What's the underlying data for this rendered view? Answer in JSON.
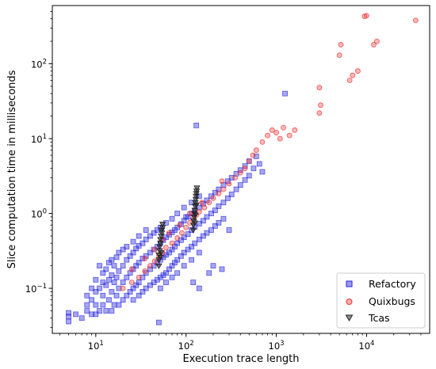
{
  "chart_data": {
    "type": "scatter",
    "xlabel": "Execution trace length",
    "ylabel": "Slice computation time in milliseconds",
    "xscale": "log",
    "yscale": "log",
    "xlim": [
      3.3,
      50000
    ],
    "ylim": [
      0.025,
      600
    ],
    "x_ticks": [
      {
        "value": 10,
        "base": "10",
        "exp": "1"
      },
      {
        "value": 100,
        "base": "10",
        "exp": "2"
      },
      {
        "value": 1000,
        "base": "10",
        "exp": "3"
      },
      {
        "value": 10000,
        "base": "10",
        "exp": "4"
      }
    ],
    "y_ticks": [
      {
        "value": 0.1,
        "base": "10",
        "exp": "−1"
      },
      {
        "value": 1,
        "base": "10",
        "exp": "0"
      },
      {
        "value": 10,
        "base": "10",
        "exp": "1"
      },
      {
        "value": 100,
        "base": "10",
        "exp": "2"
      }
    ],
    "grid": false,
    "legend_position": "bottom-right",
    "series": [
      {
        "name": "Refactory",
        "marker": "square",
        "color": "#2222dd",
        "points": [
          [
            5,
            0.036
          ],
          [
            5,
            0.042
          ],
          [
            5,
            0.047
          ],
          [
            6,
            0.045
          ],
          [
            7,
            0.04
          ],
          [
            8,
            0.05
          ],
          [
            8,
            0.06
          ],
          [
            8,
            0.08
          ],
          [
            9,
            0.045
          ],
          [
            9,
            0.07
          ],
          [
            9,
            0.1
          ],
          [
            10,
            0.045
          ],
          [
            10,
            0.06
          ],
          [
            10,
            0.09
          ],
          [
            10,
            0.13
          ],
          [
            11,
            0.05
          ],
          [
            11,
            0.1
          ],
          [
            11,
            0.2
          ],
          [
            12,
            0.06
          ],
          [
            12,
            0.08
          ],
          [
            12,
            0.12
          ],
          [
            12,
            0.16
          ],
          [
            13,
            0.05
          ],
          [
            13,
            0.11
          ],
          [
            13,
            0.18
          ],
          [
            14,
            0.07
          ],
          [
            14,
            0.13
          ],
          [
            14,
            0.22
          ],
          [
            15,
            0.05
          ],
          [
            15,
            0.09
          ],
          [
            15,
            0.15
          ],
          [
            15,
            0.24
          ],
          [
            16,
            0.06
          ],
          [
            16,
            0.12
          ],
          [
            16,
            0.2
          ],
          [
            17,
            0.08
          ],
          [
            17,
            0.14
          ],
          [
            17,
            0.26
          ],
          [
            18,
            0.06
          ],
          [
            18,
            0.1
          ],
          [
            18,
            0.17
          ],
          [
            18,
            0.3
          ],
          [
            20,
            0.07
          ],
          [
            20,
            0.12
          ],
          [
            20,
            0.2
          ],
          [
            20,
            0.33
          ],
          [
            22,
            0.08
          ],
          [
            22,
            0.14
          ],
          [
            22,
            0.24
          ],
          [
            22,
            0.36
          ],
          [
            24,
            0.09
          ],
          [
            24,
            0.16
          ],
          [
            24,
            0.27
          ],
          [
            26,
            0.07
          ],
          [
            26,
            0.1
          ],
          [
            26,
            0.18
          ],
          [
            26,
            0.3
          ],
          [
            26,
            0.42
          ],
          [
            28,
            0.11
          ],
          [
            28,
            0.2
          ],
          [
            28,
            0.34
          ],
          [
            30,
            0.08
          ],
          [
            30,
            0.12
          ],
          [
            30,
            0.22
          ],
          [
            30,
            0.37
          ],
          [
            30,
            0.5
          ],
          [
            33,
            0.09
          ],
          [
            33,
            0.14
          ],
          [
            33,
            0.25
          ],
          [
            33,
            0.4
          ],
          [
            36,
            0.1
          ],
          [
            36,
            0.16
          ],
          [
            36,
            0.27
          ],
          [
            36,
            0.45
          ],
          [
            36,
            0.6
          ],
          [
            40,
            0.11
          ],
          [
            40,
            0.18
          ],
          [
            40,
            0.3
          ],
          [
            40,
            0.5
          ],
          [
            44,
            0.12
          ],
          [
            44,
            0.2
          ],
          [
            44,
            0.33
          ],
          [
            44,
            0.55
          ],
          [
            48,
            0.13
          ],
          [
            48,
            0.22
          ],
          [
            48,
            0.36
          ],
          [
            48,
            0.6
          ],
          [
            52,
            0.1
          ],
          [
            52,
            0.14
          ],
          [
            52,
            0.24
          ],
          [
            52,
            0.4
          ],
          [
            52,
            0.65
          ],
          [
            56,
            0.15
          ],
          [
            56,
            0.26
          ],
          [
            56,
            0.44
          ],
          [
            60,
            0.12
          ],
          [
            60,
            0.16
          ],
          [
            60,
            0.28
          ],
          [
            60,
            0.48
          ],
          [
            60,
            0.75
          ],
          [
            65,
            0.18
          ],
          [
            65,
            0.3
          ],
          [
            65,
            0.52
          ],
          [
            70,
            0.14
          ],
          [
            70,
            0.2
          ],
          [
            70,
            0.33
          ],
          [
            70,
            0.56
          ],
          [
            70,
            0.85
          ],
          [
            75,
            0.22
          ],
          [
            75,
            0.36
          ],
          [
            75,
            0.6
          ],
          [
            80,
            0.16
          ],
          [
            80,
            0.24
          ],
          [
            80,
            0.4
          ],
          [
            80,
            0.65
          ],
          [
            80,
            1.0
          ],
          [
            88,
            0.27
          ],
          [
            88,
            0.44
          ],
          [
            88,
            0.72
          ],
          [
            95,
            0.2
          ],
          [
            95,
            0.3
          ],
          [
            95,
            0.48
          ],
          [
            95,
            0.8
          ],
          [
            95,
            1.2
          ],
          [
            105,
            0.33
          ],
          [
            105,
            0.53
          ],
          [
            105,
            0.9
          ],
          [
            115,
            0.24
          ],
          [
            115,
            0.36
          ],
          [
            115,
            0.6
          ],
          [
            115,
            1.0
          ],
          [
            115,
            1.4
          ],
          [
            125,
            0.4
          ],
          [
            125,
            0.66
          ],
          [
            125,
            1.1
          ],
          [
            140,
            0.3
          ],
          [
            140,
            0.45
          ],
          [
            140,
            0.73
          ],
          [
            140,
            1.2
          ],
          [
            140,
            1.7
          ],
          [
            155,
            0.5
          ],
          [
            155,
            0.8
          ],
          [
            155,
            1.35
          ],
          [
            170,
            0.55
          ],
          [
            170,
            0.9
          ],
          [
            170,
            1.5
          ],
          [
            190,
            0.6
          ],
          [
            190,
            1.0
          ],
          [
            190,
            1.7
          ],
          [
            210,
            0.68
          ],
          [
            210,
            1.1
          ],
          [
            210,
            1.9
          ],
          [
            230,
            0.75
          ],
          [
            230,
            1.25
          ],
          [
            230,
            2.1
          ],
          [
            260,
            0.85
          ],
          [
            260,
            1.4
          ],
          [
            260,
            2.4
          ],
          [
            290,
            1.6
          ],
          [
            290,
            2.7
          ],
          [
            320,
            1.8
          ],
          [
            320,
            3.0
          ],
          [
            360,
            2.1
          ],
          [
            360,
            3.4
          ],
          [
            400,
            2.4
          ],
          [
            400,
            3.8
          ],
          [
            450,
            2.8
          ],
          [
            450,
            4.3
          ],
          [
            500,
            3.2
          ],
          [
            500,
            5.0
          ],
          [
            560,
            4.0
          ],
          [
            600,
            5.8
          ],
          [
            650,
            4.6
          ],
          [
            700,
            3.6
          ],
          [
            50,
            0.035
          ],
          [
            100,
            0.9
          ],
          [
            120,
            0.12
          ],
          [
            140,
            0.1
          ],
          [
            180,
            0.16
          ],
          [
            200,
            0.2
          ],
          [
            250,
            0.18
          ],
          [
            300,
            0.6
          ],
          [
            130,
            15
          ],
          [
            1250,
            40
          ]
        ]
      },
      {
        "name": "Quixbugs",
        "marker": "circle",
        "color": "#ee3333",
        "points": [
          [
            20,
            0.1
          ],
          [
            25,
            0.12
          ],
          [
            30,
            0.14
          ],
          [
            35,
            0.17
          ],
          [
            40,
            0.2
          ],
          [
            45,
            0.23
          ],
          [
            50,
            0.27
          ],
          [
            55,
            0.3
          ],
          [
            60,
            0.35
          ],
          [
            70,
            0.4
          ],
          [
            80,
            0.47
          ],
          [
            90,
            0.55
          ],
          [
            100,
            0.65
          ],
          [
            110,
            0.75
          ],
          [
            120,
            0.85
          ],
          [
            130,
            0.95
          ],
          [
            140,
            1.05
          ],
          [
            160,
            1.2
          ],
          [
            180,
            1.4
          ],
          [
            200,
            1.6
          ],
          [
            230,
            1.85
          ],
          [
            260,
            2.1
          ],
          [
            300,
            2.5
          ],
          [
            350,
            3.0
          ],
          [
            400,
            3.5
          ],
          [
            450,
            4.0
          ],
          [
            500,
            5.0
          ],
          [
            550,
            6.0
          ],
          [
            600,
            7.0
          ],
          [
            700,
            9.0
          ],
          [
            800,
            11.0
          ],
          [
            900,
            13.0
          ],
          [
            1000,
            12.0
          ],
          [
            1100,
            10.0
          ],
          [
            1200,
            14.0
          ],
          [
            1400,
            11.0
          ],
          [
            1600,
            13.0
          ],
          [
            3000,
            22.0
          ],
          [
            3100,
            28.0
          ],
          [
            3000,
            48.0
          ],
          [
            5000,
            130.0
          ],
          [
            5200,
            180.0
          ],
          [
            6500,
            60.0
          ],
          [
            7000,
            70.0
          ],
          [
            8000,
            80.0
          ],
          [
            9500,
            430.0
          ],
          [
            10000,
            440.0
          ],
          [
            12000,
            180.0
          ],
          [
            13000,
            200.0
          ],
          [
            35000,
            380.0
          ],
          [
            25,
            0.18
          ],
          [
            35,
            0.25
          ],
          [
            45,
            0.33
          ],
          [
            55,
            0.45
          ],
          [
            65,
            0.55
          ],
          [
            85,
            0.7
          ],
          [
            110,
            1.0
          ],
          [
            150,
            1.4
          ],
          [
            250,
            2.7
          ]
        ]
      },
      {
        "name": "Tcas",
        "marker": "triangle-down",
        "color": "#222222",
        "points": [
          [
            50,
            0.2
          ],
          [
            50,
            0.24
          ],
          [
            50,
            0.28
          ],
          [
            51,
            0.32
          ],
          [
            51,
            0.36
          ],
          [
            52,
            0.4
          ],
          [
            52,
            0.45
          ],
          [
            53,
            0.5
          ],
          [
            54,
            0.55
          ],
          [
            54,
            0.6
          ],
          [
            55,
            0.65
          ],
          [
            55,
            0.72
          ],
          [
            53,
            0.3
          ],
          [
            52,
            0.26
          ],
          [
            120,
            0.6
          ],
          [
            121,
            0.7
          ],
          [
            122,
            0.8
          ],
          [
            123,
            0.9
          ],
          [
            124,
            1.0
          ],
          [
            125,
            1.1
          ],
          [
            126,
            1.25
          ],
          [
            127,
            1.4
          ],
          [
            128,
            1.55
          ],
          [
            129,
            1.7
          ],
          [
            130,
            1.85
          ],
          [
            131,
            2.0
          ],
          [
            132,
            2.2
          ],
          [
            125,
            0.75
          ],
          [
            127,
            0.95
          ],
          [
            130,
            1.3
          ]
        ]
      }
    ]
  }
}
